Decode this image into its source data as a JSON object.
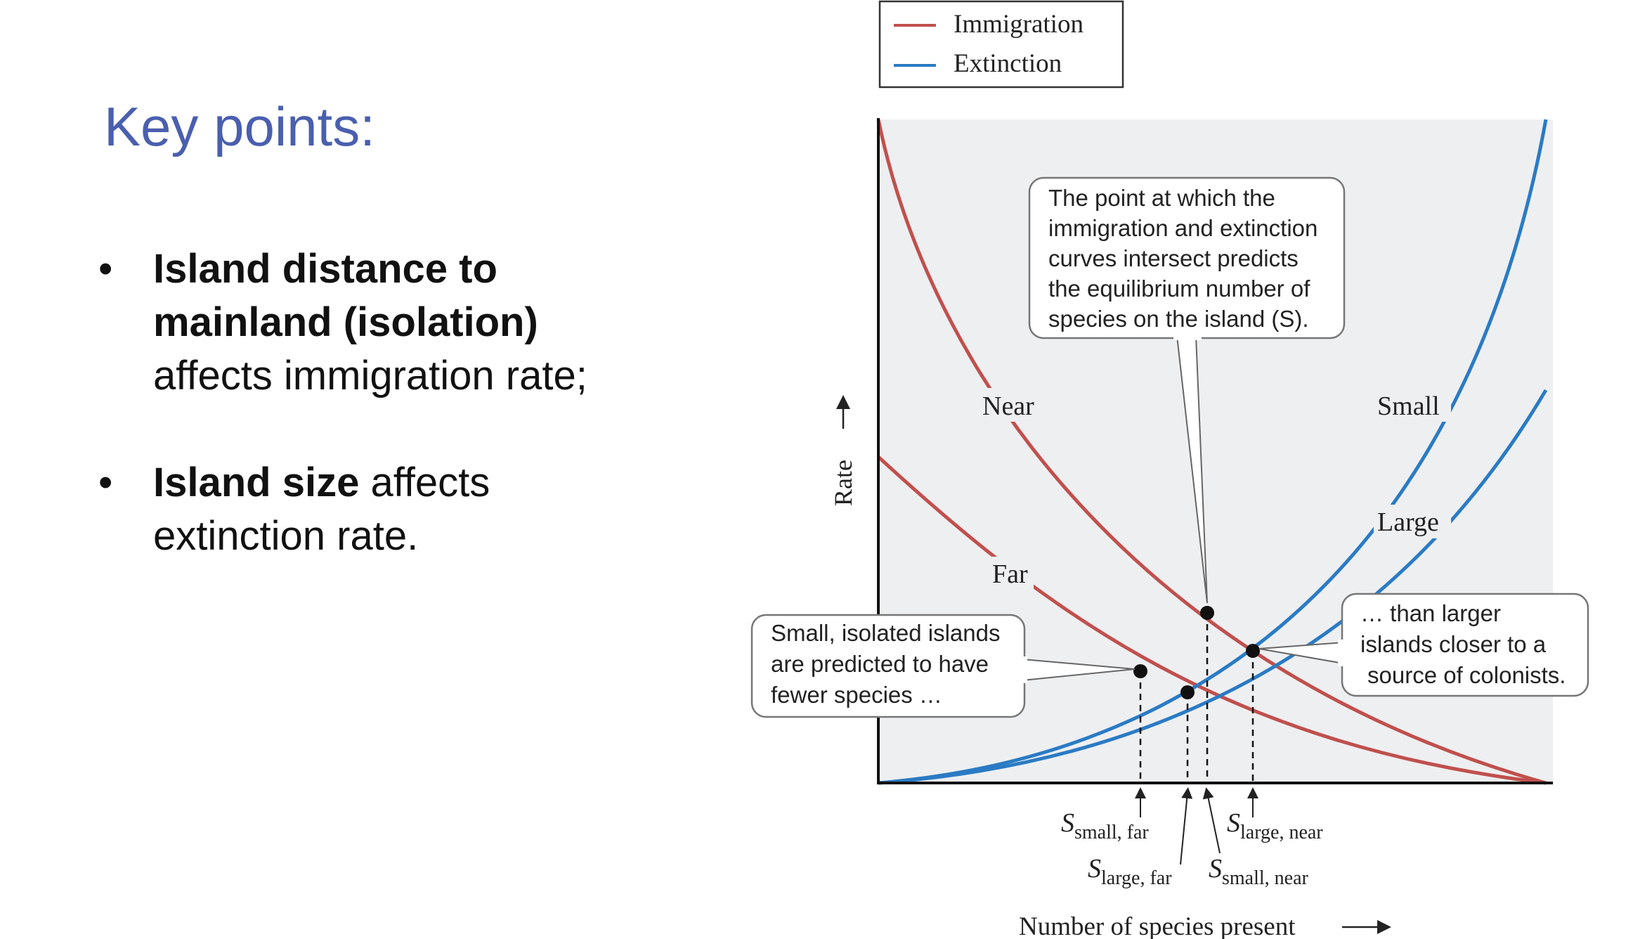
{
  "slide": {
    "heading": "Key points:",
    "bullets": [
      {
        "bullet": "•",
        "bold": "Island distance to mainland (isolation)",
        "rest": "affects immigration rate;"
      },
      {
        "bullet": "•",
        "bold": "Island size",
        "rest": "affects extinction rate."
      }
    ]
  },
  "diagram": {
    "legend": {
      "immigration": "Immigration",
      "extinction": "Extinction"
    },
    "curve_labels": {
      "near": "Near",
      "far": "Far",
      "small": "Small",
      "large": "Large"
    },
    "y_axis_label": "Rate",
    "x_axis_label": "Number of species present",
    "callout_top": [
      "The point at which the",
      "immigration and extinction",
      "curves intersect predicts",
      "the equilibrium number of",
      "species on the island (S)."
    ],
    "callout_left": [
      "Small, isolated islands",
      "are predicted to have",
      "fewer species …"
    ],
    "callout_right": [
      "… than larger",
      "islands closer to a",
      "source of colonists."
    ],
    "equilibria": [
      {
        "symbol": "S",
        "subscript": "small, far"
      },
      {
        "symbol": "S",
        "subscript": "large, far"
      },
      {
        "symbol": "S",
        "subscript": "small, near"
      },
      {
        "symbol": "S",
        "subscript": "large, near"
      }
    ],
    "colors": {
      "immigration": "#c0504d",
      "extinction": "#2a7bc4",
      "plot_bg": "#eeeff1"
    }
  }
}
